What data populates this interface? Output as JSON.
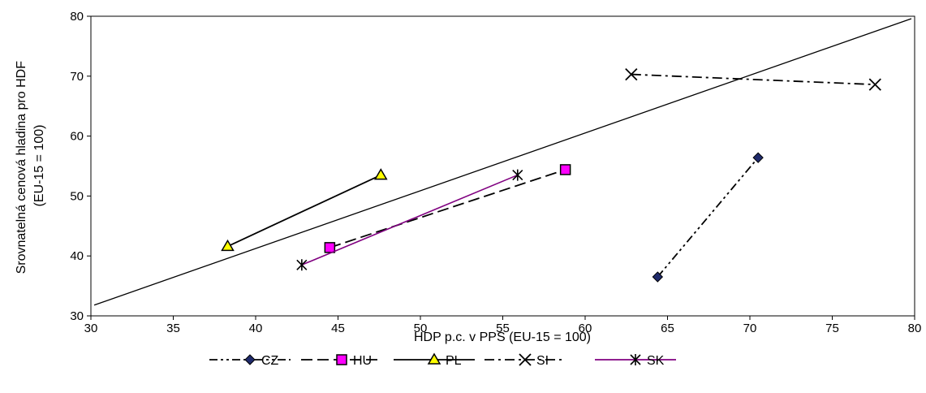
{
  "chart_data": {
    "type": "scatter",
    "xlabel": "HDP p.c. v PPS (EU-15 = 100)",
    "ylabel_lines": [
      "Srovnatelná cenová hladina pro HDF",
      "(EU-15 = 100)"
    ],
    "xlim": [
      30,
      80
    ],
    "ylim": [
      30,
      80
    ],
    "xticks": [
      30,
      35,
      40,
      45,
      50,
      55,
      60,
      65,
      70,
      75,
      80
    ],
    "yticks": [
      30,
      40,
      50,
      60,
      70,
      80
    ],
    "grid": false,
    "legend_position": "bottom",
    "reference_line": {
      "x": [
        30.2,
        79.8
      ],
      "y": [
        31.8,
        79.6
      ]
    },
    "series": [
      {
        "name": "CZ",
        "x": [
          64.4,
          70.5
        ],
        "y": [
          36.5,
          56.4
        ],
        "marker": "diamond",
        "fill": "#1f2a6b",
        "dash": "dashdotdot",
        "color": "#000000"
      },
      {
        "name": "HU",
        "x": [
          44.5,
          58.8
        ],
        "y": [
          41.4,
          54.4
        ],
        "marker": "square",
        "fill": "#ff00ff",
        "dash": "longdash",
        "color": "#000000"
      },
      {
        "name": "PL",
        "x": [
          38.3,
          47.6
        ],
        "y": [
          41.6,
          53.5
        ],
        "marker": "triangle",
        "fill": "#ffff00",
        "dash": "solid",
        "color": "#000000"
      },
      {
        "name": "SI",
        "x": [
          62.8,
          77.6
        ],
        "y": [
          70.3,
          68.6
        ],
        "marker": "x",
        "fill": "none",
        "dash": "dashdot",
        "color": "#000000"
      },
      {
        "name": "SK",
        "x": [
          42.8,
          55.9
        ],
        "y": [
          38.5,
          53.5
        ],
        "marker": "star",
        "fill": "none",
        "dash": "solid",
        "color": "#800080"
      }
    ]
  }
}
